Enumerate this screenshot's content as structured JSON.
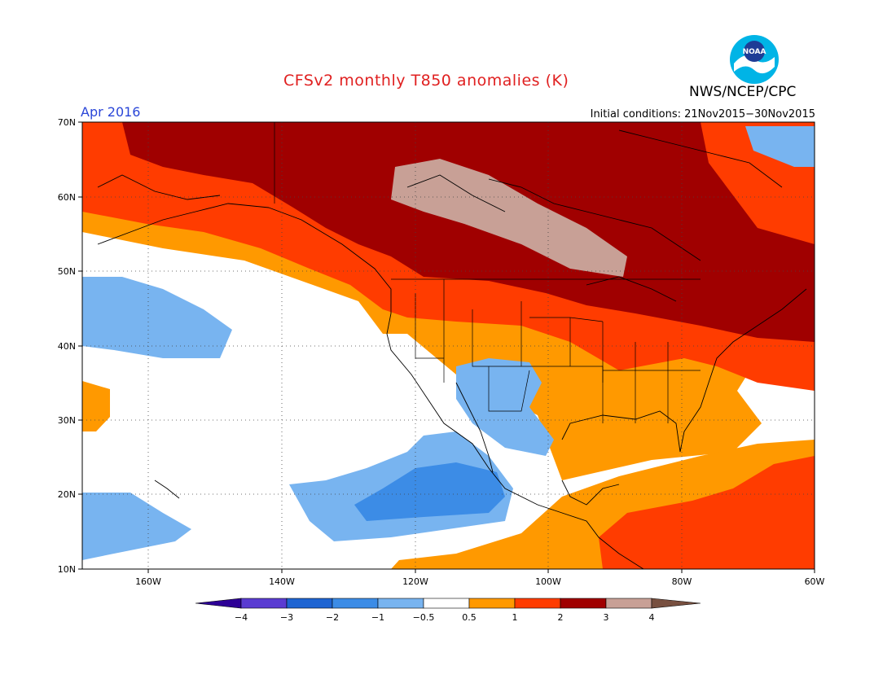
{
  "header": {
    "title": "CFSv2 monthly T850 anomalies (K)",
    "agency": "NWS/NCEP/CPC",
    "logo_text": "NOAA",
    "valid_month": "Apr 2016",
    "initial_conditions": "Initial conditions: 21Nov2015−30Nov2015"
  },
  "map": {
    "lon_range": [
      -172,
      -60
    ],
    "lat_range": [
      10,
      70
    ],
    "lat_labels": [
      "70N",
      "60N",
      "50N",
      "40N",
      "30N",
      "20N",
      "10N"
    ],
    "lon_labels": [
      "160W",
      "140W",
      "120W",
      "100W",
      "80W",
      "60W"
    ],
    "gridlines": "dotted"
  },
  "colorbar": {
    "labels": [
      "−4",
      "−3",
      "−2",
      "−1",
      "−0.5",
      "0.5",
      "1",
      "2",
      "3",
      "4"
    ],
    "colors": [
      "#2d0096",
      "#5a3cd2",
      "#1e64d2",
      "#3c8ce6",
      "#78b4f0",
      "#ffffff",
      "#ff9900",
      "#ff3c00",
      "#a00000",
      "#c8a096",
      "#785040"
    ]
  }
}
